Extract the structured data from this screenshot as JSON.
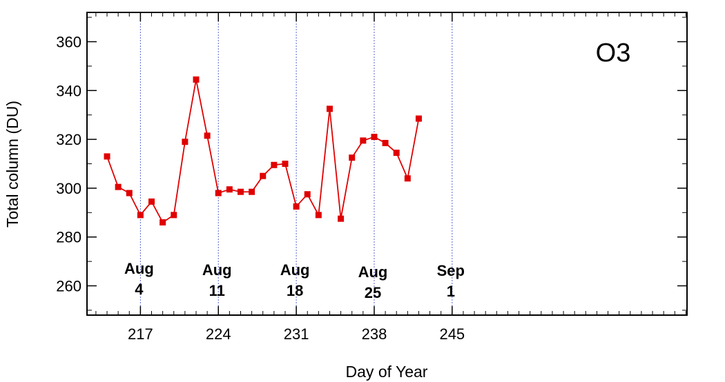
{
  "chart_data": {
    "type": "line",
    "title": "",
    "annotation": "O3",
    "xlabel": "Day of Year",
    "ylabel": "Total column (DU)",
    "xlim": [
      212.2,
      266.1
    ],
    "ylim": [
      248,
      372
    ],
    "x_ticks": [
      217,
      224,
      231,
      238,
      245
    ],
    "x_tick_labels": [
      "217",
      "224",
      "231",
      "238",
      "245"
    ],
    "y_ticks": [
      260,
      280,
      300,
      320,
      340,
      360
    ],
    "y_tick_labels": [
      "260",
      "280",
      "300",
      "320",
      "340",
      "360"
    ],
    "date_markers": [
      {
        "x": 217,
        "line1": "Aug",
        "line2": "4"
      },
      {
        "x": 224,
        "line1": "Aug",
        "line2": "11"
      },
      {
        "x": 231,
        "line1": "Aug",
        "line2": "18"
      },
      {
        "x": 238,
        "line1": "Aug",
        "line2": "25"
      },
      {
        "x": 245,
        "line1": "Sep",
        "line2": "1"
      }
    ],
    "grid": "vertical dotted lines at date markers",
    "series": [
      {
        "color": "#e00000",
        "marker": "square",
        "x": [
          214,
          215,
          216,
          217,
          218,
          219,
          220,
          221,
          222,
          223,
          224,
          225,
          226,
          227,
          228,
          229,
          230,
          231,
          232,
          233,
          234,
          235,
          236,
          237,
          238,
          239,
          240,
          241,
          242
        ],
        "y": [
          313,
          300.5,
          298,
          289,
          294.5,
          286,
          289,
          319,
          344.5,
          321.5,
          298,
          299.5,
          298.5,
          298.5,
          305,
          309.5,
          310,
          292.5,
          297.5,
          289,
          332.5,
          287.5,
          312.5,
          319.5,
          321,
          318.5,
          314.5,
          304,
          328.5
        ]
      }
    ]
  }
}
